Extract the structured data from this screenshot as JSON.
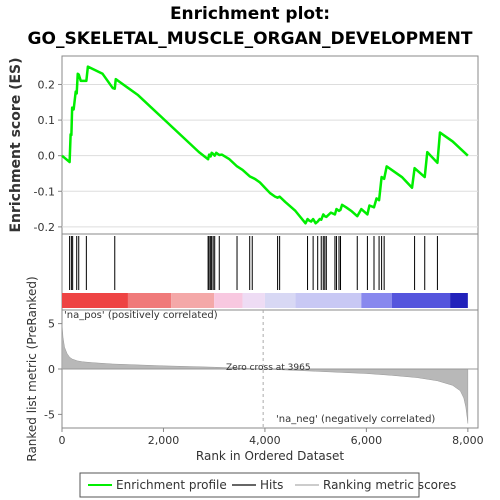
{
  "title_line1": "Enrichment plot:",
  "title_line2": "GO_SKELETAL_MUSCLE_ORGAN_DEVELOPMENT",
  "colors": {
    "es_line": "#00ee00",
    "hits": "#000000",
    "metric_fill": "#b8b8b8",
    "frame": "#888888",
    "pos_label": "#cc3333",
    "neg_label": "#3333cc",
    "zero_cross_line": "#aaaaaa"
  },
  "chart_data": {
    "type": "line",
    "xlabel": "Rank in Ordered Dataset",
    "es_panel": {
      "ylabel": "Enrichment score (ES)",
      "ylim": [
        -0.22,
        0.28
      ],
      "yticks": [
        -0.2,
        -0.1,
        0.0,
        0.1,
        0.2
      ],
      "ytick_labels": [
        "-0.2",
        "-0.1",
        "0.0",
        "0.1",
        "0.2"
      ],
      "series": [
        {
          "name": "Enrichment profile",
          "x": [
            0,
            150,
            170,
            185,
            200,
            230,
            270,
            290,
            310,
            330,
            370,
            480,
            510,
            800,
            1000,
            1040,
            1060,
            1500,
            1800,
            2100,
            2400,
            2700,
            2880,
            2900,
            2930,
            2950,
            2980,
            3010,
            3040,
            3100,
            3150,
            3300,
            3450,
            3560,
            3700,
            3800,
            3900,
            4000,
            4100,
            4200,
            4250,
            4290,
            4400,
            4600,
            4800,
            4840,
            4870,
            4910,
            4950,
            5000,
            5040,
            5080,
            5110,
            5150,
            5180,
            5210,
            5300,
            5380,
            5410,
            5460,
            5490,
            5520,
            5600,
            5700,
            5820,
            5900,
            6020,
            6060,
            6150,
            6200,
            6250,
            6300,
            6350,
            6400,
            6500,
            6700,
            6900,
            6950,
            7150,
            7200,
            7400,
            7450,
            7700,
            8000
          ],
          "y": [
            0.0,
            -0.018,
            0.06,
            0.058,
            0.135,
            0.13,
            0.18,
            0.175,
            0.23,
            0.228,
            0.21,
            0.21,
            0.25,
            0.23,
            0.19,
            0.188,
            0.215,
            0.17,
            0.13,
            0.09,
            0.05,
            0.01,
            -0.01,
            0.003,
            -0.002,
            0.008,
            0.005,
            0.0,
            0.008,
            0.002,
            0.003,
            -0.01,
            -0.03,
            -0.04,
            -0.058,
            -0.065,
            -0.075,
            -0.09,
            -0.105,
            -0.115,
            -0.118,
            -0.115,
            -0.13,
            -0.155,
            -0.19,
            -0.178,
            -0.182,
            -0.185,
            -0.178,
            -0.19,
            -0.185,
            -0.178,
            -0.18,
            -0.165,
            -0.17,
            -0.172,
            -0.16,
            -0.165,
            -0.15,
            -0.155,
            -0.152,
            -0.138,
            -0.145,
            -0.155,
            -0.17,
            -0.15,
            -0.165,
            -0.14,
            -0.145,
            -0.12,
            -0.125,
            -0.06,
            -0.065,
            -0.03,
            -0.04,
            -0.06,
            -0.09,
            -0.035,
            -0.06,
            0.01,
            -0.02,
            0.065,
            0.04,
            0.0
          ]
        }
      ]
    },
    "hits_panel": {
      "name": "Hits",
      "hit_ranks": [
        150,
        185,
        210,
        290,
        330,
        480,
        1040,
        2880,
        2900,
        2930,
        2950,
        2980,
        3010,
        3100,
        3450,
        3700,
        3750,
        4250,
        4290,
        4840,
        4950,
        5040,
        5110,
        5150,
        5180,
        5210,
        5380,
        5410,
        5460,
        5490,
        5820,
        6020,
        6150,
        6250,
        6300,
        6350,
        6950,
        7150,
        7400
      ]
    },
    "heatmap_bar": {
      "segments": [
        {
          "from": 0,
          "to": 1300,
          "color": "#ee4444"
        },
        {
          "from": 1300,
          "to": 2150,
          "color": "#f07a7a"
        },
        {
          "from": 2150,
          "to": 3000,
          "color": "#f4a8a8"
        },
        {
          "from": 3000,
          "to": 3560,
          "color": "#f8c8e0"
        },
        {
          "from": 3560,
          "to": 4000,
          "color": "#eedcf4"
        },
        {
          "from": 4000,
          "to": 4600,
          "color": "#d8d8f4"
        },
        {
          "from": 4600,
          "to": 5900,
          "color": "#c8c8f4"
        },
        {
          "from": 5900,
          "to": 6500,
          "color": "#8888ee"
        },
        {
          "from": 6500,
          "to": 7650,
          "color": "#5555dd"
        },
        {
          "from": 7650,
          "to": 8000,
          "color": "#2222bb"
        }
      ]
    },
    "metric_panel": {
      "name": "Ranking metric scores",
      "ylabel": "Ranked list metric (PreRanked)",
      "ylim": [
        -6.5,
        6.5
      ],
      "yticks": [
        -5,
        0,
        5
      ],
      "ytick_labels": [
        "-5",
        "0",
        "5"
      ],
      "x": [
        0,
        20,
        50,
        100,
        150,
        200,
        300,
        400,
        600,
        1000,
        2000,
        3000,
        3965,
        5000,
        6000,
        6500,
        7000,
        7400,
        7700,
        7850,
        7920,
        7960,
        7990,
        8000
      ],
      "y": [
        5.0,
        3.5,
        2.4,
        1.7,
        1.3,
        1.1,
        0.9,
        0.8,
        0.7,
        0.55,
        0.35,
        0.2,
        0.0,
        -0.25,
        -0.5,
        -0.7,
        -0.95,
        -1.3,
        -1.8,
        -2.4,
        -3.2,
        -4.2,
        -5.5,
        -6.0
      ],
      "zero_cross_rank": 3965,
      "zero_cross_label": "Zero cross at 3965",
      "pos_label": "'na_pos' (positively correlated)",
      "neg_label": "'na_neg' (negatively correlated)"
    },
    "xlim": [
      0,
      8200
    ],
    "xticks": [
      0,
      2000,
      4000,
      6000,
      8000
    ],
    "xtick_labels": [
      "0",
      "2,000",
      "4,000",
      "6,000",
      "8,000"
    ],
    "legend": {
      "placement": "bottom",
      "entries": [
        {
          "label": "Enrichment profile",
          "color": "#00ee00"
        },
        {
          "label": "Hits",
          "color": "#000000"
        },
        {
          "label": "Ranking metric scores",
          "color": "#b8b8b8"
        }
      ]
    }
  }
}
